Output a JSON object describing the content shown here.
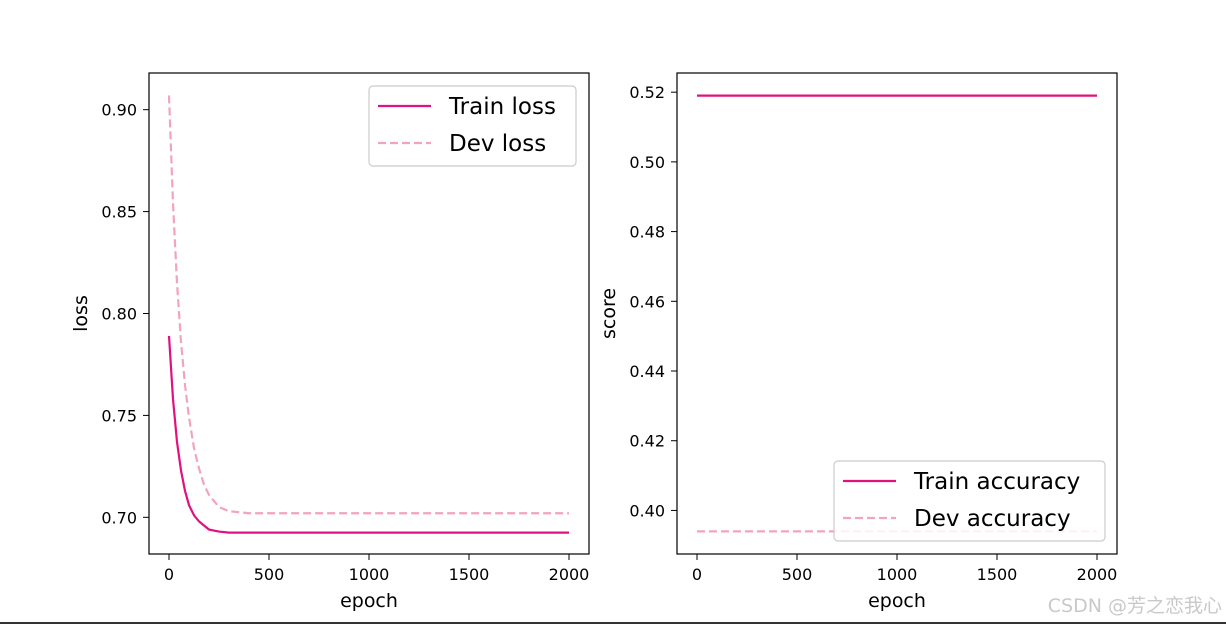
{
  "watermark": "CSDN @芳之恋我心",
  "colors": {
    "train": "#e0127f",
    "dev": "#f2a3bd"
  },
  "chart_data": [
    {
      "type": "line",
      "xlabel": "epoch",
      "ylabel": "loss",
      "xlim": [
        -100,
        2100
      ],
      "ylim": [
        0.682,
        0.918
      ],
      "xticks": [
        0,
        500,
        1000,
        1500,
        2000
      ],
      "yticks": [
        0.7,
        0.75,
        0.8,
        0.85,
        0.9
      ],
      "ytick_labels": [
        "0.70",
        "0.75",
        "0.80",
        "0.85",
        "0.90"
      ],
      "grid": false,
      "legend_position": "upper-right",
      "x": [
        0,
        20,
        40,
        60,
        80,
        100,
        125,
        150,
        175,
        200,
        250,
        300,
        400,
        500,
        750,
        1000,
        1500,
        2000
      ],
      "series": [
        {
          "name": "Train loss",
          "style": "solid",
          "values": [
            0.789,
            0.758,
            0.737,
            0.723,
            0.713,
            0.706,
            0.701,
            0.698,
            0.696,
            0.694,
            0.693,
            0.6925,
            0.6925,
            0.6925,
            0.6925,
            0.6925,
            0.6925,
            0.6925
          ]
        },
        {
          "name": "Dev loss",
          "style": "dashed",
          "values": [
            0.907,
            0.854,
            0.815,
            0.786,
            0.765,
            0.749,
            0.734,
            0.724,
            0.716,
            0.711,
            0.705,
            0.703,
            0.702,
            0.702,
            0.702,
            0.702,
            0.702,
            0.702
          ]
        }
      ]
    },
    {
      "type": "line",
      "xlabel": "epoch",
      "ylabel": "score",
      "xlim": [
        -100,
        2100
      ],
      "ylim": [
        0.3875,
        0.5255
      ],
      "xticks": [
        0,
        500,
        1000,
        1500,
        2000
      ],
      "yticks": [
        0.4,
        0.42,
        0.44,
        0.46,
        0.48,
        0.5,
        0.52
      ],
      "ytick_labels": [
        "0.40",
        "0.42",
        "0.44",
        "0.46",
        "0.48",
        "0.50",
        "0.52"
      ],
      "grid": false,
      "legend_position": "lower-right",
      "x": [
        0,
        2000
      ],
      "series": [
        {
          "name": "Train accuracy",
          "style": "solid",
          "values": [
            0.519,
            0.519
          ]
        },
        {
          "name": "Dev accuracy",
          "style": "dashed",
          "values": [
            0.394,
            0.394
          ]
        }
      ]
    }
  ]
}
